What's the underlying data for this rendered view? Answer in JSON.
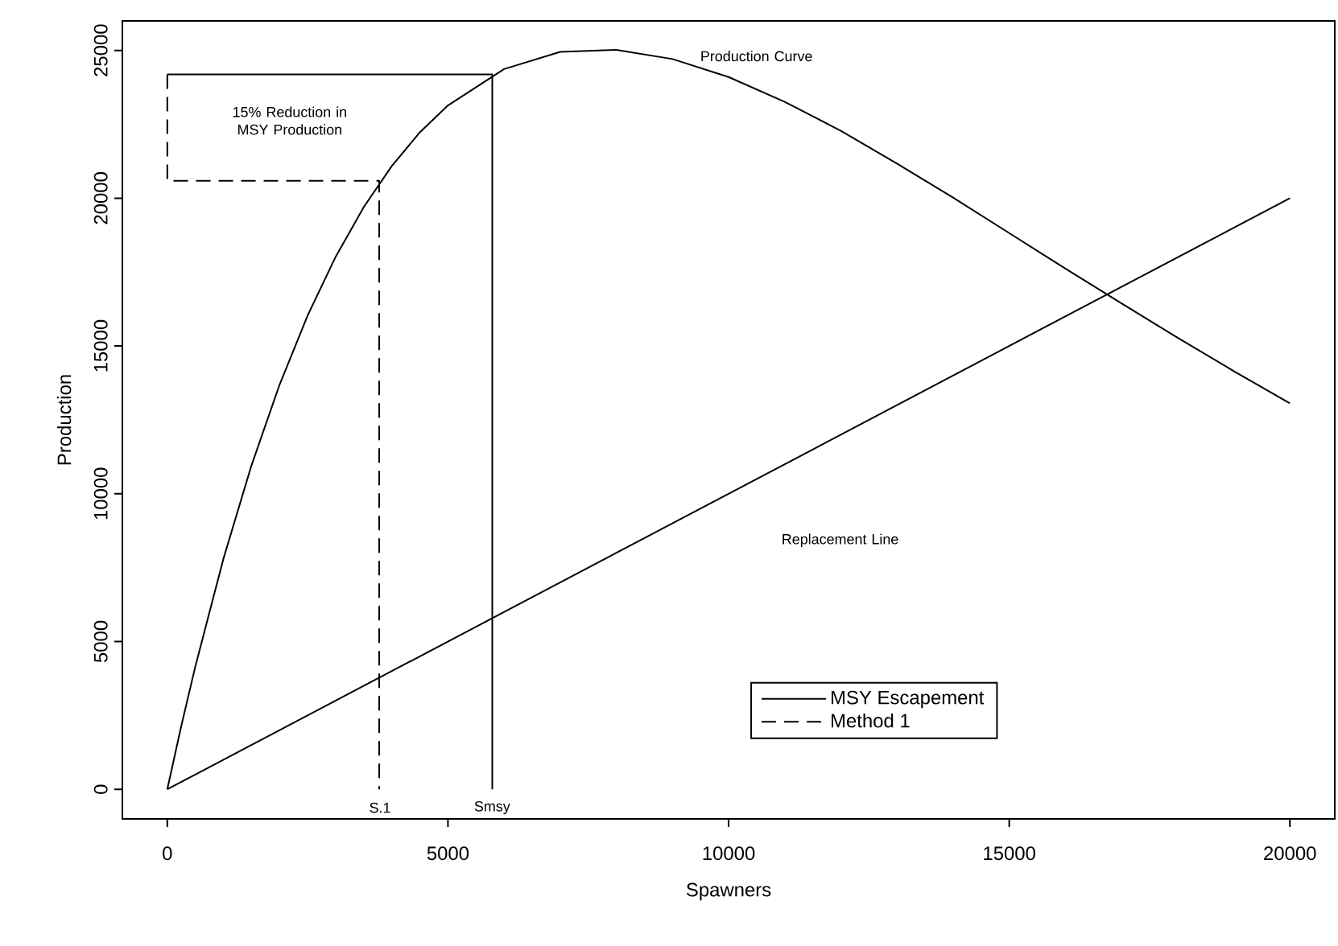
{
  "chart_data": {
    "type": "line",
    "xlabel": "Spawners",
    "ylabel": "Production",
    "xlim": [
      -800,
      20800
    ],
    "ylim": [
      -1000,
      26000
    ],
    "xticks": [
      0,
      5000,
      10000,
      15000,
      20000
    ],
    "yticks": [
      0,
      5000,
      10000,
      15000,
      20000,
      25000
    ],
    "grid": false,
    "legend": "bottom",
    "marker": "none",
    "series": [
      {
        "color": "#000000",
        "line_style": "solid",
        "x": [
          0,
          250,
          500,
          1000,
          1500,
          2000,
          2500,
          3000,
          3500,
          4000,
          4500,
          5000,
          6000,
          7000,
          8000,
          9000,
          10000,
          11000,
          12000,
          13000,
          14000,
          15000,
          16000,
          17000,
          18000,
          19000,
          20000
        ],
        "values": [
          0,
          2150,
          4160,
          7800,
          10960,
          13690,
          16030,
          18020,
          19700,
          21090,
          22230,
          23140,
          24370,
          24950,
          25020,
          24710,
          24100,
          23260,
          22280,
          21170,
          20020,
          18820,
          17620,
          16440,
          15280,
          14150,
          13060
        ]
      },
      {
        "color": "#000000",
        "line_style": "solid",
        "x": [
          0,
          20000
        ],
        "values": [
          0,
          20000
        ]
      },
      {
        "name": "MSY Escapement",
        "color": "#000000",
        "line_style": "solid",
        "x": [
          5790,
          5790,
          0
        ],
        "values": [
          0,
          24190,
          24190
        ]
      },
      {
        "name": "Method 1",
        "color": "#000000",
        "line_style": "dashed",
        "x": [
          0,
          0,
          3775,
          3775
        ],
        "values": [
          24190,
          20590,
          20590,
          0
        ]
      }
    ],
    "annotations": [
      "Production Curve",
      "Replacement Line",
      "15% Reduction in MSY Production",
      "S.1",
      "Smsy"
    ]
  }
}
